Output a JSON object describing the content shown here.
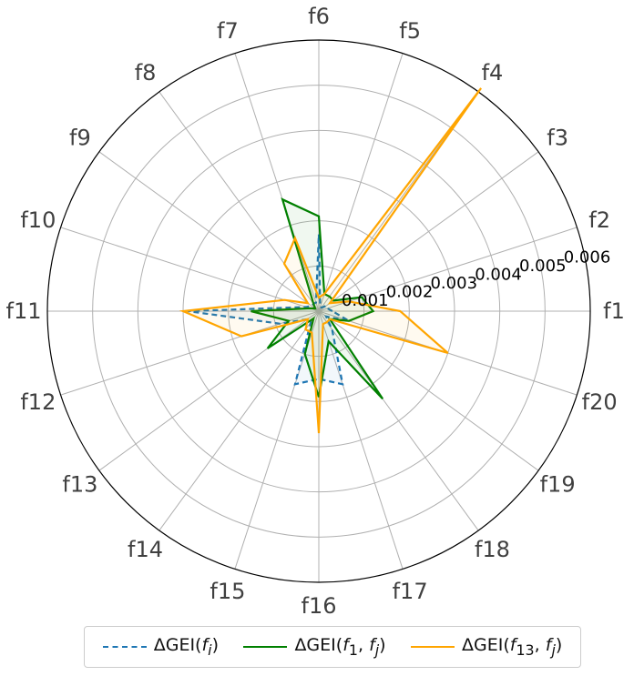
{
  "chart_data": {
    "type": "radar",
    "categories": [
      "f1",
      "f2",
      "f3",
      "f4",
      "f5",
      "f6",
      "f7",
      "f8",
      "f9",
      "f10",
      "f11",
      "f12",
      "f13",
      "f14",
      "f15",
      "f16",
      "f17",
      "f18",
      "f19",
      "f20"
    ],
    "rlim": [
      0,
      0.006
    ],
    "radial_ticks": [
      {
        "value": 0.001,
        "label": "0.001"
      },
      {
        "value": 0.002,
        "label": "0.002"
      },
      {
        "value": 0.003,
        "label": "0.003"
      },
      {
        "value": 0.004,
        "label": "0.004"
      },
      {
        "value": 0.005,
        "label": "0.005"
      },
      {
        "value": 0.006,
        "label": "0.006"
      }
    ],
    "grid": true,
    "legend_position": "bottom",
    "series": [
      {
        "name": "ΔGEI(f_i)",
        "label": "ΔGEI(",
        "label_arg": "f",
        "label_sub": "i",
        "color": "#1f77b4",
        "style": "dashed",
        "values": [
          0.0003,
          0.0002,
          0.0002,
          0.0001,
          0.0001,
          0.0017,
          0.0002,
          0.0002,
          0.0002,
          0.0003,
          0.0029,
          0.0009,
          0.0003,
          0.0003,
          0.0017,
          0.0015,
          0.0017,
          0.0005,
          0.0002,
          0.0007
        ]
      },
      {
        "name": "ΔGEI(f_1, f_j)",
        "label": "ΔGEI(",
        "label_arg": "f",
        "label_sub": "1",
        "label_arg2": "f",
        "label_sub2": "j",
        "color": "#008000",
        "style": "solid",
        "values": [
          0.0012,
          0.001,
          0.0004,
          0.0004,
          0.0004,
          0.0021,
          0.0026,
          0.0002,
          0.0001,
          0.0002,
          0.0015,
          0.0007,
          0.0014,
          0.0002,
          0.001,
          0.0019,
          0.0007,
          0.0024,
          0.0003,
          0.0007
        ]
      },
      {
        "name": "ΔGEI(f_13, f_j)",
        "label": "ΔGEI(",
        "label_arg": "f",
        "label_sub": "13",
        "label_arg2": "f",
        "label_sub2": "j",
        "color": "#ffa500",
        "style": "solid",
        "values": [
          0.0018,
          0.0007,
          0.0003,
          0.0061,
          0.0004,
          0.0003,
          0.0017,
          0.0013,
          0.0003,
          0.0008,
          0.003,
          0.0018,
          0.0003,
          0.0005,
          0.0005,
          0.0027,
          0.0003,
          0.0003,
          0.0003,
          0.003
        ]
      }
    ]
  }
}
